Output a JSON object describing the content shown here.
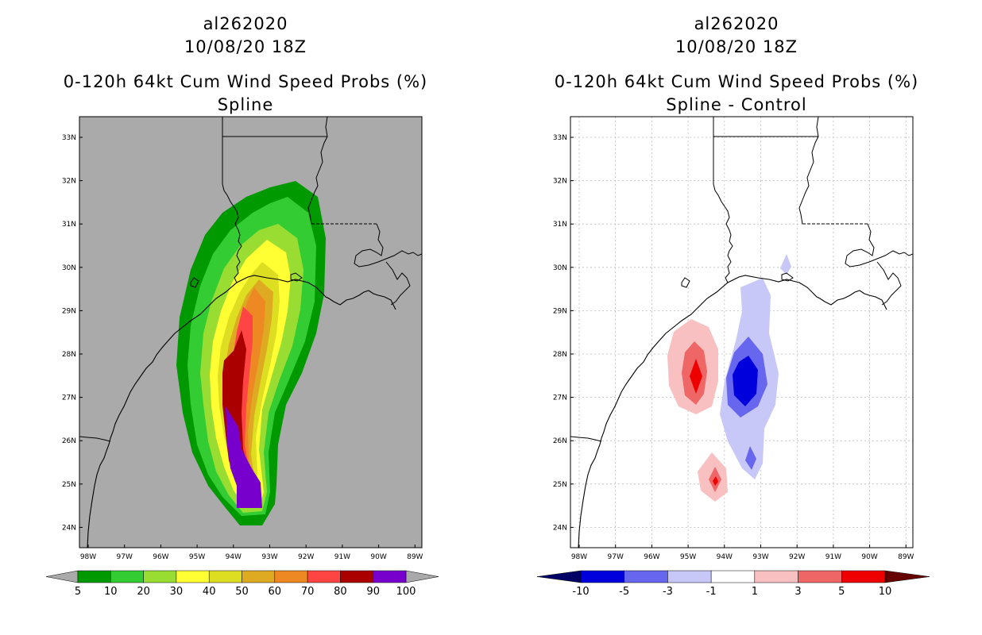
{
  "left": {
    "title_storm": "al262020",
    "title_date": "10/08/20 18Z",
    "title_product": "0-120h 64kt Cum Wind Speed Probs (%)",
    "title_method": "Spline",
    "colorbar_labels": [
      "5",
      "10",
      "20",
      "30",
      "40",
      "50",
      "60",
      "70",
      "80",
      "90",
      "100"
    ],
    "colorbar_colors": [
      "#009900",
      "#33cc33",
      "#99dd33",
      "#ffff33",
      "#dddd22",
      "#ddaa22",
      "#ee8822",
      "#ff4444",
      "#aa0000",
      "#7700cc"
    ]
  },
  "right": {
    "title_storm": "al262020",
    "title_date": "10/08/20 18Z",
    "title_product": "0-120h 64kt Cum Wind Speed Probs (%)",
    "title_method": "Spline - Control",
    "colorbar_labels": [
      "-10",
      "-5",
      "-3",
      "-1",
      "1",
      "3",
      "5",
      "10"
    ],
    "colorbar_colors": [
      "#0000dd",
      "#6666ee",
      "#c8c8f8",
      "#ffffff",
      "#f8c0c0",
      "#ee6666",
      "#ee0000"
    ]
  },
  "axes": {
    "lat_labels": [
      "33N",
      "32N",
      "31N",
      "30N",
      "29N",
      "28N",
      "27N",
      "26N",
      "25N",
      "24N"
    ],
    "lon_labels": [
      "98W",
      "97W",
      "96W",
      "95W",
      "94W",
      "93W",
      "92W",
      "91W",
      "90W",
      "89W"
    ]
  },
  "map_colors": {
    "left_background": "#aaaaaa",
    "right_background": "#ffffff",
    "coast": "#000000",
    "grid": "#bbbbbb"
  }
}
